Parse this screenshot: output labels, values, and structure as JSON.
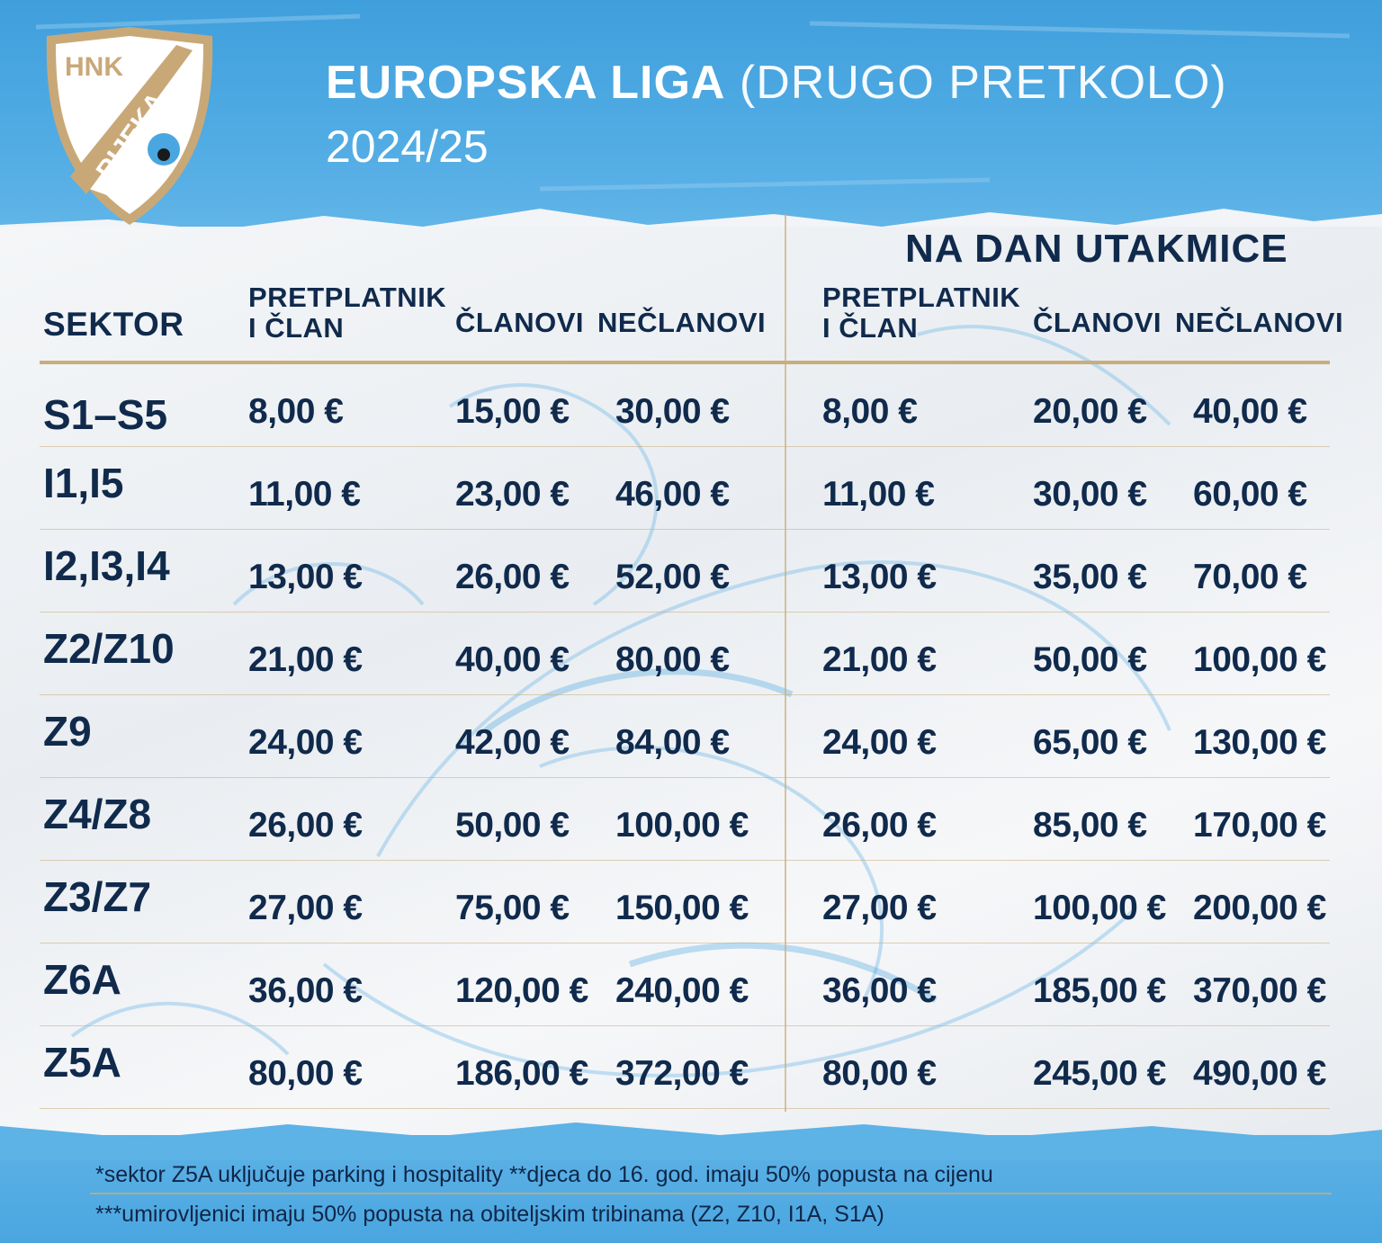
{
  "header": {
    "crest_top": "HNK",
    "crest_name": "RIJEKA",
    "title_main": "EUROPSKA LIGA",
    "title_sub": "(DRUGO PRETKOLO)",
    "season": "2024/25"
  },
  "table": {
    "sector_header": "SEKTOR",
    "matchday_title": "NA DAN UTAKMICE",
    "col_subscriber_l1": "PRETPLATNIK",
    "col_subscriber_l2": "I ČLAN",
    "col_members": "ČLANOVI",
    "col_nonmembers": "NEČLANOVI",
    "rows": [
      {
        "sector": "S1–S5",
        "pre_sub": "8,00 €",
        "pre_mem": "15,00 €",
        "pre_non": "30,00 €",
        "day_sub": "8,00 €",
        "day_mem": "20,00 €",
        "day_non": "40,00 €"
      },
      {
        "sector": "I1,I5",
        "pre_sub": "11,00 €",
        "pre_mem": "23,00 €",
        "pre_non": "46,00 €",
        "day_sub": "11,00 €",
        "day_mem": "30,00 €",
        "day_non": "60,00 €"
      },
      {
        "sector": "I2,I3,I4",
        "pre_sub": "13,00 €",
        "pre_mem": "26,00 €",
        "pre_non": "52,00 €",
        "day_sub": "13,00 €",
        "day_mem": "35,00 €",
        "day_non": "70,00 €"
      },
      {
        "sector": "Z2/Z10",
        "pre_sub": "21,00 €",
        "pre_mem": "40,00 €",
        "pre_non": "80,00 €",
        "day_sub": "21,00 €",
        "day_mem": "50,00 €",
        "day_non": "100,00 €"
      },
      {
        "sector": "Z9",
        "pre_sub": "24,00 €",
        "pre_mem": "42,00 €",
        "pre_non": "84,00 €",
        "day_sub": "24,00 €",
        "day_mem": "65,00 €",
        "day_non": "130,00 €"
      },
      {
        "sector": "Z4/Z8",
        "pre_sub": "26,00 €",
        "pre_mem": "50,00 €",
        "pre_non": "100,00 €",
        "day_sub": "26,00 €",
        "day_mem": "85,00 €",
        "day_non": "170,00 €"
      },
      {
        "sector": "Z3/Z7",
        "pre_sub": "27,00 €",
        "pre_mem": "75,00 €",
        "pre_non": "150,00 €",
        "day_sub": "27,00 €",
        "day_mem": "100,00 €",
        "day_non": "200,00 €"
      },
      {
        "sector": "Z6A",
        "pre_sub": "36,00 €",
        "pre_mem": "120,00 €",
        "pre_non": "240,00 €",
        "day_sub": "36,00 €",
        "day_mem": "185,00 €",
        "day_non": "370,00 €"
      },
      {
        "sector": "Z5A",
        "pre_sub": "80,00 €",
        "pre_mem": "186,00 €",
        "pre_non": "372,00 €",
        "day_sub": "80,00 €",
        "day_mem": "245,00 €",
        "day_non": "490,00 €"
      }
    ]
  },
  "footnotes": {
    "line1": "*sektor Z5A uključuje parking i hospitality **djeca do 16. god. imaju 50% popusta na cijenu",
    "line2": "***umirovljenici imaju 50% popusta na obiteljskim tribinama (Z2, Z10, I1A, S1A)"
  },
  "colors": {
    "navy": "#102a4c",
    "sky_blue": "#4aa6e0",
    "gold": "#c9ad7a"
  }
}
